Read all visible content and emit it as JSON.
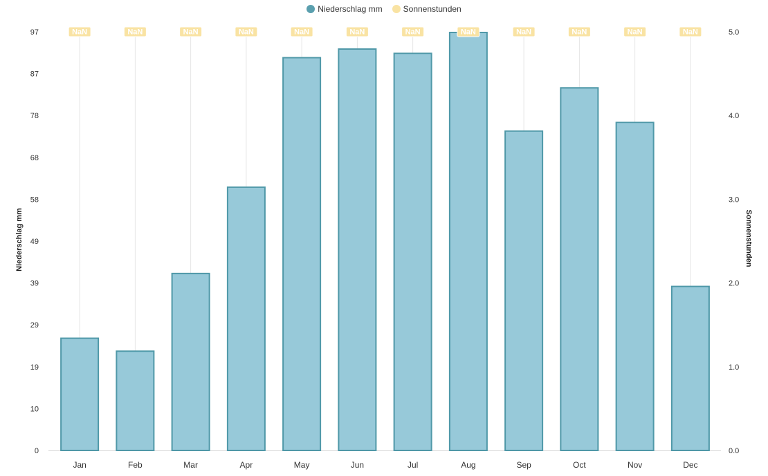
{
  "legend": {
    "precip_label": "Niederschlag mm",
    "sun_label": "Sonnenstunden"
  },
  "colors": {
    "bar_fill": "#97c9d9",
    "bar_stroke": "#4f98a8",
    "sun_color": "#f9e3a3",
    "precip_legend": "#5a9fae",
    "grid": "#e5e5e5"
  },
  "chart_data": {
    "type": "bar",
    "categories": [
      "Jan",
      "Feb",
      "Mar",
      "Apr",
      "May",
      "Jun",
      "Jul",
      "Aug",
      "Sep",
      "Oct",
      "Nov",
      "Dec"
    ],
    "series": [
      {
        "name": "Niederschlag mm",
        "axis": "left",
        "values": [
          26,
          23,
          41,
          61,
          91,
          93,
          92,
          98,
          74,
          84,
          76,
          38
        ]
      },
      {
        "name": "Sonnenstunden",
        "axis": "right",
        "values": [
          null,
          null,
          null,
          null,
          null,
          null,
          null,
          null,
          null,
          null,
          null,
          null
        ],
        "data_labels": [
          "NaN",
          "NaN",
          "NaN",
          "NaN",
          "NaN",
          "NaN",
          "NaN",
          "NaN",
          "NaN",
          "NaN",
          "NaN",
          "NaN"
        ]
      }
    ],
    "ylabel": "Niederschlag mm",
    "y2label": "Sonnenstunden",
    "ylim": [
      0,
      97
    ],
    "y2lim": [
      0,
      5
    ],
    "yticks": [
      "0",
      "10",
      "19",
      "29",
      "39",
      "49",
      "58",
      "68",
      "78",
      "87",
      "97"
    ],
    "y2ticks": [
      "0.0",
      "1.0",
      "2.0",
      "3.0",
      "4.0",
      "5.0"
    ],
    "legend_position": "top"
  }
}
